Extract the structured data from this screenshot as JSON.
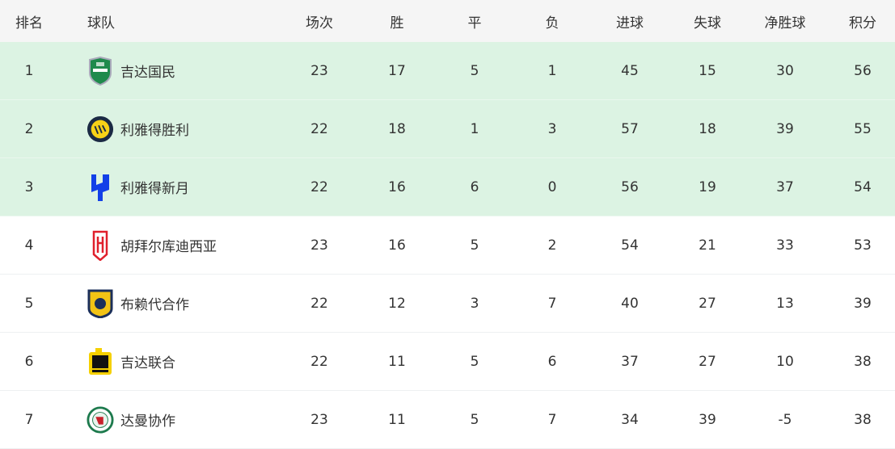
{
  "columns": {
    "rank": "排名",
    "team": "球队",
    "played": "场次",
    "won": "胜",
    "drawn": "平",
    "lost": "负",
    "gf": "进球",
    "ga": "失球",
    "gd": "净胜球",
    "pts": "积分"
  },
  "highlight_color": "#dcf3e3",
  "rows": [
    {
      "rank": "1",
      "team": "吉达国民",
      "logo": "al-ahli-crest-icon",
      "played": "23",
      "won": "17",
      "drawn": "5",
      "lost": "1",
      "gf": "45",
      "ga": "15",
      "gd": "30",
      "pts": "56",
      "highlight": true
    },
    {
      "rank": "2",
      "team": "利雅得胜利",
      "logo": "al-nassr-crest-icon",
      "played": "22",
      "won": "18",
      "drawn": "1",
      "lost": "3",
      "gf": "57",
      "ga": "18",
      "gd": "39",
      "pts": "55",
      "highlight": true
    },
    {
      "rank": "3",
      "team": "利雅得新月",
      "logo": "al-hilal-crest-icon",
      "played": "22",
      "won": "16",
      "drawn": "6",
      "lost": "0",
      "gf": "56",
      "ga": "19",
      "gd": "37",
      "pts": "54",
      "highlight": true
    },
    {
      "rank": "4",
      "team": "胡拜尔库迪西亚",
      "logo": "al-qadsiah-crest-icon",
      "played": "23",
      "won": "16",
      "drawn": "5",
      "lost": "2",
      "gf": "54",
      "ga": "21",
      "gd": "33",
      "pts": "53",
      "highlight": false
    },
    {
      "rank": "5",
      "team": "布赖代合作",
      "logo": "al-taawoun-crest-icon",
      "played": "22",
      "won": "12",
      "drawn": "3",
      "lost": "7",
      "gf": "40",
      "ga": "27",
      "gd": "13",
      "pts": "39",
      "highlight": false
    },
    {
      "rank": "6",
      "team": "吉达联合",
      "logo": "al-ittihad-crest-icon",
      "played": "22",
      "won": "11",
      "drawn": "5",
      "lost": "6",
      "gf": "37",
      "ga": "27",
      "gd": "10",
      "pts": "38",
      "highlight": false
    },
    {
      "rank": "7",
      "team": "达曼协作",
      "logo": "al-ettifaq-crest-icon",
      "played": "23",
      "won": "11",
      "drawn": "5",
      "lost": "7",
      "gf": "34",
      "ga": "39",
      "gd": "-5",
      "pts": "38",
      "highlight": false
    }
  ]
}
